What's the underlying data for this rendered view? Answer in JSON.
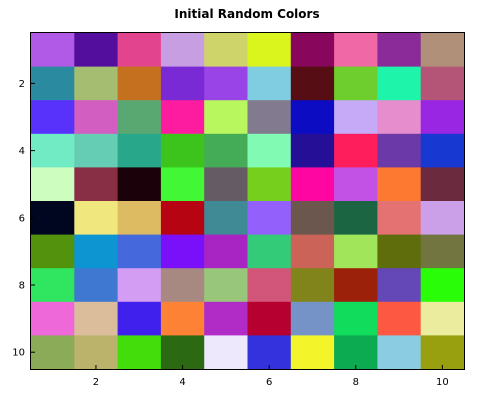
{
  "chart_data": {
    "type": "heatmap",
    "title": "Initial Random Colors",
    "xlabel": "",
    "ylabel": "",
    "xlim": [
      0.5,
      10.5
    ],
    "ylim": [
      10.5,
      0.5
    ],
    "grid": false,
    "x_ticks": [
      2,
      4,
      6,
      8,
      10
    ],
    "y_ticks": [
      2,
      4,
      6,
      8,
      10
    ],
    "rows": 10,
    "cols": 10,
    "colors": [
      [
        "#b15ae7",
        "#540e9e",
        "#e2458e",
        "#c89ee2",
        "#cfd46a",
        "#d9f51d",
        "#88065c",
        "#f068a5",
        "#8b2a99",
        "#b09079"
      ],
      [
        "#2a8a9f",
        "#a5bd71",
        "#c5701f",
        "#7a2ad5",
        "#9944e6",
        "#80cde2",
        "#560d14",
        "#6ece2d",
        "#1ef5aa",
        "#b45578"
      ],
      [
        "#5831fb",
        "#d15ec0",
        "#59a872",
        "#fd1ca0",
        "#b8f75e",
        "#827a8e",
        "#0c0dc2",
        "#c6a9f7",
        "#e68dcd",
        "#9926e2"
      ],
      [
        "#71ebc3",
        "#66cdb5",
        "#29a78b",
        "#3cc41c",
        "#44ab57",
        "#81fbb4",
        "#250f97",
        "#fd1e5b",
        "#6c39a8",
        "#1738d1"
      ],
      [
        "#cdfdbf",
        "#892f45",
        "#1b0109",
        "#41f736",
        "#655b64",
        "#75cf1c",
        "#fe06a2",
        "#c252e5",
        "#fd7932",
        "#6c2a3e"
      ],
      [
        "#000620",
        "#f0e77e",
        "#dcbb63",
        "#b70412",
        "#408a95",
        "#9460fb",
        "#6b574d",
        "#1b6542",
        "#e57272",
        "#cba0e8"
      ],
      [
        "#52920c",
        "#0d95d1",
        "#4569dc",
        "#7a10f9",
        "#a824c3",
        "#33cb77",
        "#cb6358",
        "#a1e65a",
        "#5f6d0c",
        "#727540"
      ],
      [
        "#30e660",
        "#3e78d1",
        "#d39df3",
        "#a88982",
        "#98c77b",
        "#d2557a",
        "#80841a",
        "#9b210b",
        "#6448b8",
        "#29fd07"
      ],
      [
        "#ee68da",
        "#dbbd9b",
        "#3f20ec",
        "#fe8235",
        "#b12bc7",
        "#b6002f",
        "#7693c7",
        "#11dc5c",
        "#fd5841",
        "#ecec9e"
      ],
      [
        "#8bab58",
        "#bbb36c",
        "#43dd0b",
        "#2b6913",
        "#ede8fb",
        "#3332dd",
        "#f3f52a",
        "#0caa51",
        "#8bcce3",
        "#98a00f"
      ]
    ]
  }
}
